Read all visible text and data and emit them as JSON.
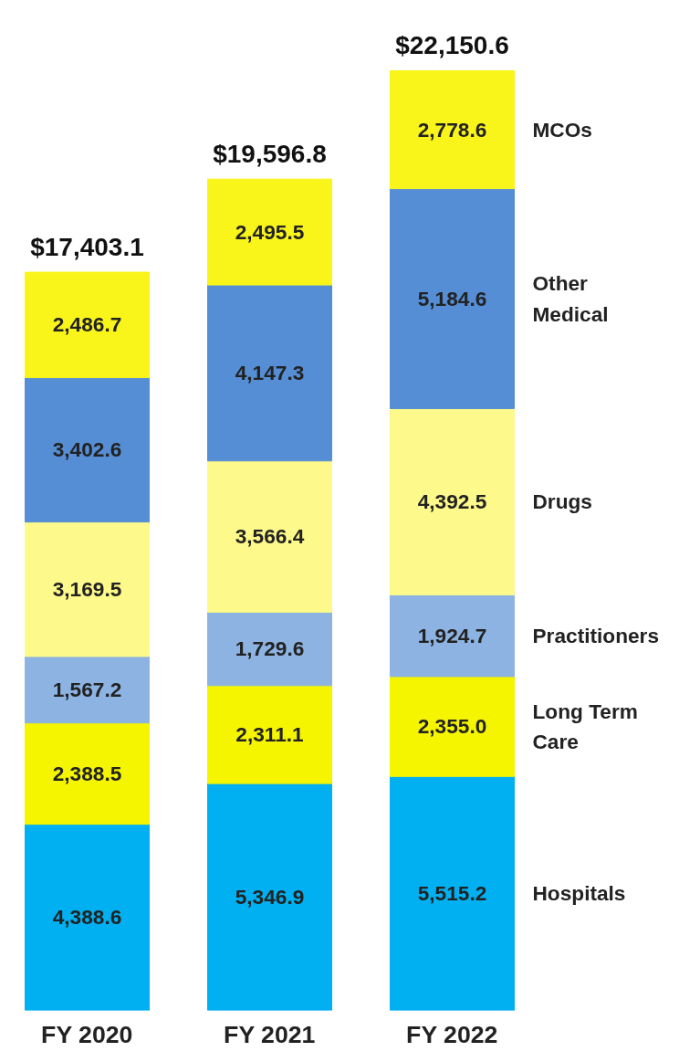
{
  "chart_data": {
    "type": "bar",
    "stacked": true,
    "categories": [
      "FY 2020",
      "FY 2021",
      "FY 2022"
    ],
    "series": [
      {
        "name": "Hospitals",
        "color": "#00b0f0",
        "values": [
          4388.6,
          5346.9,
          5515.2
        ],
        "value_labels": [
          "4,388.6",
          "5,346.9",
          "5,515.2"
        ]
      },
      {
        "name": "Long Term Care",
        "color": "#f5f500",
        "values": [
          2388.5,
          2311.1,
          2355.0
        ],
        "value_labels": [
          "2,388.5",
          "2,311.1",
          "2,355.0"
        ]
      },
      {
        "name": "Practitioners",
        "color": "#8db3e2",
        "values": [
          1567.2,
          1729.6,
          1924.7
        ],
        "value_labels": [
          "1,567.2",
          "1,729.6",
          "1,924.7"
        ]
      },
      {
        "name": "Drugs",
        "color": "#fdf98a",
        "values": [
          3169.5,
          3566.4,
          4392.5
        ],
        "value_labels": [
          "3,169.5",
          "3,566.4",
          "4,392.5"
        ]
      },
      {
        "name": "Other Medical",
        "color": "#558ed5",
        "values": [
          3402.6,
          4147.3,
          5184.6
        ],
        "value_labels": [
          "3,402.6",
          "4,147.3",
          "5,184.6"
        ]
      },
      {
        "name": "MCOs",
        "color": "#f9f51a",
        "values": [
          2486.7,
          2495.5,
          2778.6
        ],
        "value_labels": [
          "2,486.7",
          "2,495.5",
          "2,778.6"
        ]
      }
    ],
    "totals": [
      "$17,403.1",
      "$19,596.8",
      "$22,150.6"
    ],
    "grid": false,
    "legend": false
  }
}
